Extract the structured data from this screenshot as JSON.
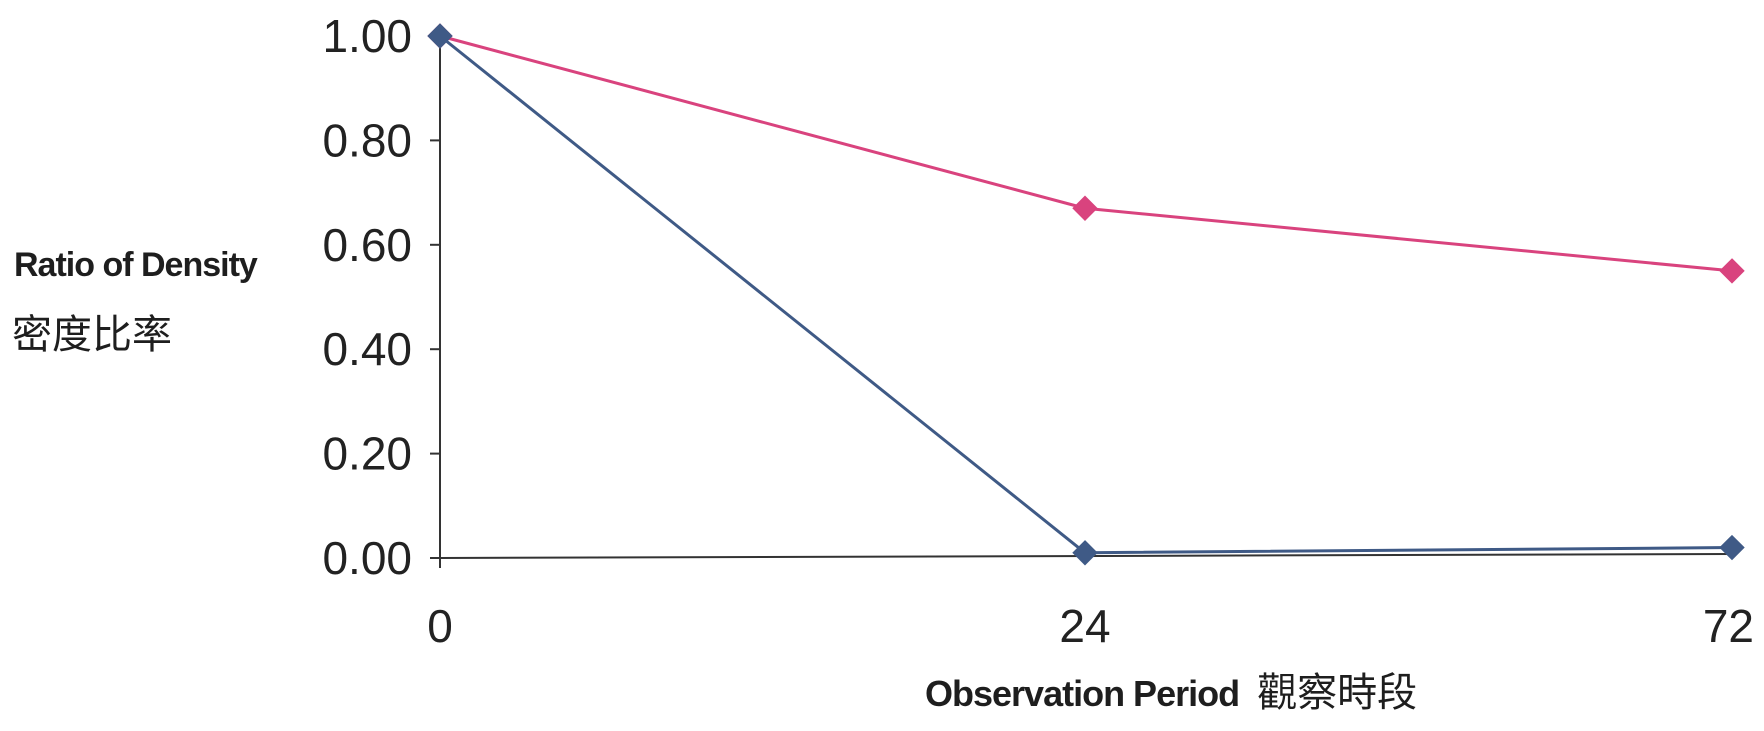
{
  "chart_data": {
    "type": "line",
    "categories": [
      "0",
      "24",
      "72"
    ],
    "series": [
      {
        "values": [
          1.0,
          0.67,
          0.55
        ],
        "color": "#d9437e",
        "marker": "diamond"
      },
      {
        "values": [
          1.0,
          0.01,
          0.02
        ],
        "color": "#3f5a86",
        "marker": "diamond"
      }
    ],
    "ylim": [
      0,
      1
    ],
    "yticks": [
      "0.00",
      "0.20",
      "0.40",
      "0.60",
      "0.80",
      "1.00"
    ],
    "ylabel": "Ratio of Density",
    "ylabel_secondary": "密度比率",
    "xlabel": "Observation Period",
    "xlabel_secondary": "觀察時段",
    "grid": false
  }
}
